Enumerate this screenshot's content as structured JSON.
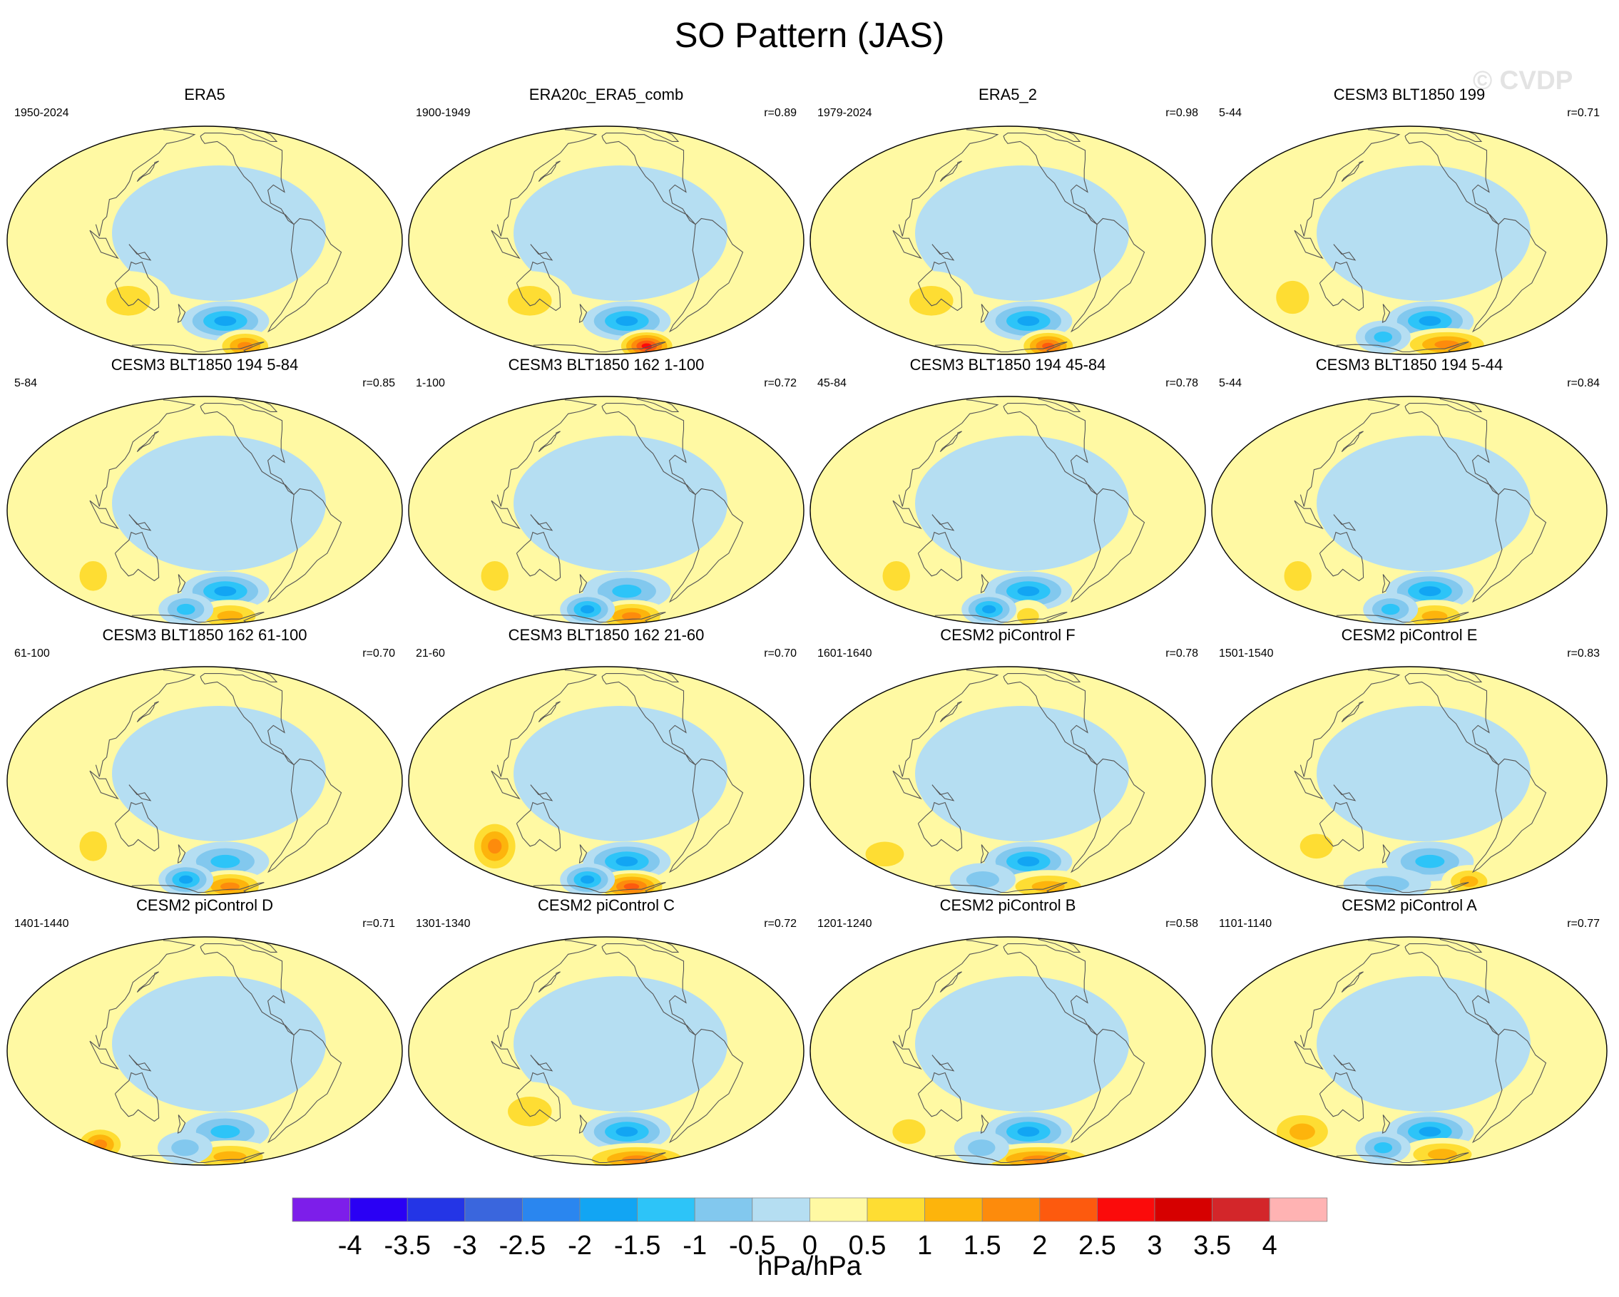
{
  "title": "SO Pattern (JAS)",
  "watermark": "© CVDP",
  "units": "hPa/hPa",
  "colorbar": {
    "colors": [
      "#7d1eea",
      "#2a00f4",
      "#2435e6",
      "#3a66dd",
      "#2a86ef",
      "#12a5f3",
      "#2dc4f8",
      "#82c8ee",
      "#b5def2",
      "#fff9a3",
      "#fedd33",
      "#fdb40c",
      "#fd8b0c",
      "#fd5a0e",
      "#fb0b0b",
      "#d60000",
      "#d3262a",
      "#ffb3b3"
    ],
    "labels": [
      "-4",
      "-3.5",
      "-3",
      "-2.5",
      "-2",
      "-1.5",
      "-1",
      "-0.5",
      "0",
      "0.5",
      "1",
      "1.5",
      "2",
      "2.5",
      "3",
      "3.5",
      "4"
    ]
  },
  "panels": [
    {
      "title": "ERA5",
      "years": "1950-2024",
      "corr": "",
      "features": [
        {
          "lon": -135,
          "lat": -45,
          "amp": -1.8,
          "rx": 40,
          "ry": 12
        },
        {
          "lon": -80,
          "lat": -68,
          "amp": 1.9,
          "rx": 28,
          "ry": 10
        },
        {
          "lon": 120,
          "lat": -32,
          "amp": 0.6,
          "rx": 40,
          "ry": 18
        }
      ]
    },
    {
      "title": "ERA20c_ERA5_comb",
      "years": "1900-1949",
      "corr": "r=0.89",
      "features": [
        {
          "lon": -135,
          "lat": -45,
          "amp": -1.8,
          "rx": 40,
          "ry": 12
        },
        {
          "lon": -80,
          "lat": -68,
          "amp": 2.8,
          "rx": 28,
          "ry": 10
        },
        {
          "lon": 120,
          "lat": -32,
          "amp": 0.6,
          "rx": 40,
          "ry": 18
        }
      ]
    },
    {
      "title": "ERA5_2",
      "years": "1979-2024",
      "corr": "r=0.98",
      "features": [
        {
          "lon": -135,
          "lat": -45,
          "amp": -1.9,
          "rx": 40,
          "ry": 12
        },
        {
          "lon": -80,
          "lat": -68,
          "amp": 2.2,
          "rx": 28,
          "ry": 10
        },
        {
          "lon": 120,
          "lat": -32,
          "amp": 0.6,
          "rx": 40,
          "ry": 18
        }
      ]
    },
    {
      "title": "CESM3 BLT1850 199",
      "years": "5-44",
      "corr": "r=0.71",
      "features": [
        {
          "lon": -135,
          "lat": -45,
          "amp": -1.6,
          "rx": 40,
          "ry": 12
        },
        {
          "lon": -90,
          "lat": -66,
          "amp": 1.6,
          "rx": 45,
          "ry": 10
        },
        {
          "lon": 80,
          "lat": -30,
          "amp": 0.7,
          "rx": 30,
          "ry": 20
        },
        {
          "lon": 160,
          "lat": -58,
          "amp": -1.2,
          "rx": 25,
          "ry": 10
        }
      ]
    },
    {
      "title": "CESM3 BLT1850 194 5-84",
      "years": "5-84",
      "corr": "r=0.85",
      "features": [
        {
          "lon": -135,
          "lat": -45,
          "amp": -1.6,
          "rx": 40,
          "ry": 12
        },
        {
          "lon": -110,
          "lat": -68,
          "amp": 1.4,
          "rx": 35,
          "ry": 10
        },
        {
          "lon": 80,
          "lat": -35,
          "amp": 0.8,
          "rx": 25,
          "ry": 18
        },
        {
          "lon": 170,
          "lat": -60,
          "amp": -1.3,
          "rx": 25,
          "ry": 10
        }
      ]
    },
    {
      "title": "CESM3 BLT1850 162 1-100",
      "years": "1-100",
      "corr": "r=0.72",
      "features": [
        {
          "lon": -135,
          "lat": -45,
          "amp": -1.5,
          "rx": 40,
          "ry": 12
        },
        {
          "lon": -110,
          "lat": -68,
          "amp": 1.7,
          "rx": 35,
          "ry": 10
        },
        {
          "lon": 80,
          "lat": -35,
          "amp": 0.8,
          "rx": 25,
          "ry": 18
        },
        {
          "lon": 170,
          "lat": -60,
          "amp": -1.8,
          "rx": 25,
          "ry": 10
        }
      ]
    },
    {
      "title": "CESM3 BLT1850 194 45-84",
      "years": "45-84",
      "corr": "r=0.78",
      "features": [
        {
          "lon": -135,
          "lat": -45,
          "amp": -1.6,
          "rx": 40,
          "ry": 12
        },
        {
          "lon": -120,
          "lat": -68,
          "amp": 1.0,
          "rx": 20,
          "ry": 10
        },
        {
          "lon": 80,
          "lat": -35,
          "amp": 0.9,
          "rx": 25,
          "ry": 18
        },
        {
          "lon": 170,
          "lat": -60,
          "amp": -1.6,
          "rx": 25,
          "ry": 10
        }
      ]
    },
    {
      "title": "CESM3 BLT1850 194 5-44",
      "years": "5-44",
      "corr": "r=0.84",
      "features": [
        {
          "lon": -135,
          "lat": -45,
          "amp": -1.6,
          "rx": 40,
          "ry": 12
        },
        {
          "lon": -110,
          "lat": -68,
          "amp": 1.4,
          "rx": 35,
          "ry": 10
        },
        {
          "lon": 80,
          "lat": -35,
          "amp": 0.8,
          "rx": 25,
          "ry": 18
        },
        {
          "lon": 170,
          "lat": -60,
          "amp": -1.1,
          "rx": 25,
          "ry": 10
        }
      ]
    },
    {
      "title": "CESM3 BLT1850 162 61-100",
      "years": "61-100",
      "corr": "r=0.70",
      "features": [
        {
          "lon": -135,
          "lat": -45,
          "amp": -1.5,
          "rx": 40,
          "ry": 12
        },
        {
          "lon": -110,
          "lat": -68,
          "amp": 1.6,
          "rx": 35,
          "ry": 10
        },
        {
          "lon": 80,
          "lat": -35,
          "amp": 0.6,
          "rx": 25,
          "ry": 18
        },
        {
          "lon": 170,
          "lat": -60,
          "amp": -1.6,
          "rx": 25,
          "ry": 10
        }
      ]
    },
    {
      "title": "CESM3 BLT1850 162 21-60",
      "years": "21-60",
      "corr": "r=0.70",
      "features": [
        {
          "lon": -135,
          "lat": -45,
          "amp": -1.6,
          "rx": 40,
          "ry": 12
        },
        {
          "lon": -110,
          "lat": -68,
          "amp": 2.4,
          "rx": 35,
          "ry": 10
        },
        {
          "lon": 80,
          "lat": -35,
          "amp": 1.6,
          "rx": 25,
          "ry": 18
        },
        {
          "lon": 170,
          "lat": -60,
          "amp": -2.0,
          "rx": 25,
          "ry": 10
        }
      ]
    },
    {
      "title": "CESM2 piControl F",
      "years": "1601-1640",
      "corr": "r=0.78",
      "features": [
        {
          "lon": -135,
          "lat": -45,
          "amp": -1.6,
          "rx": 40,
          "ry": 12
        },
        {
          "lon": -80,
          "lat": -68,
          "amp": 1.2,
          "rx": 45,
          "ry": 10
        },
        {
          "lon": 60,
          "lat": -40,
          "amp": 0.9,
          "rx": 35,
          "ry": 15
        },
        {
          "lon": 160,
          "lat": -60,
          "amp": -0.8,
          "rx": 30,
          "ry": 10
        }
      ]
    },
    {
      "title": "CESM2 piControl E",
      "years": "1501-1540",
      "corr": "r=0.83",
      "features": [
        {
          "lon": -135,
          "lat": -45,
          "amp": -1.4,
          "rx": 40,
          "ry": 12
        },
        {
          "lon": -60,
          "lat": -62,
          "amp": 1.3,
          "rx": 25,
          "ry": 10
        },
        {
          "lon": 100,
          "lat": -35,
          "amp": 0.6,
          "rx": 30,
          "ry": 15
        },
        {
          "lon": 160,
          "lat": -65,
          "amp": -0.9,
          "rx": 40,
          "ry": 10
        }
      ]
    },
    {
      "title": "CESM2 piControl D",
      "years": "1401-1440",
      "corr": "r=0.71",
      "features": [
        {
          "lon": -135,
          "lat": -45,
          "amp": -1.5,
          "rx": 40,
          "ry": 12
        },
        {
          "lon": -110,
          "lat": -68,
          "amp": 1.1,
          "rx": 45,
          "ry": 10
        },
        {
          "lon": 50,
          "lat": -55,
          "amp": 1.6,
          "rx": 25,
          "ry": 12
        },
        {
          "lon": 170,
          "lat": -58,
          "amp": -0.9,
          "rx": 25,
          "ry": 10
        }
      ]
    },
    {
      "title": "CESM2 piControl C",
      "years": "1301-1340",
      "corr": "r=0.72",
      "features": [
        {
          "lon": -135,
          "lat": -45,
          "amp": -1.6,
          "rx": 40,
          "ry": 12
        },
        {
          "lon": -90,
          "lat": -72,
          "amp": 2.0,
          "rx": 55,
          "ry": 10
        },
        {
          "lon": 120,
          "lat": -32,
          "amp": 0.6,
          "rx": 40,
          "ry": 18
        }
      ]
    },
    {
      "title": "CESM2 piControl B",
      "years": "1201-1240",
      "corr": "r=0.58",
      "features": [
        {
          "lon": -135,
          "lat": -45,
          "amp": -1.6,
          "rx": 40,
          "ry": 12
        },
        {
          "lon": -90,
          "lat": -72,
          "amp": 1.8,
          "rx": 60,
          "ry": 10
        },
        {
          "lon": 160,
          "lat": -58,
          "amp": -0.8,
          "rx": 25,
          "ry": 10
        },
        {
          "lon": 80,
          "lat": -45,
          "amp": 0.7,
          "rx": 30,
          "ry": 15
        }
      ]
    },
    {
      "title": "CESM2 piControl A",
      "years": "1101-1140",
      "corr": "r=0.77",
      "features": [
        {
          "lon": -135,
          "lat": -45,
          "amp": -1.6,
          "rx": 40,
          "ry": 12
        },
        {
          "lon": -100,
          "lat": -65,
          "amp": 1.2,
          "rx": 40,
          "ry": 10
        },
        {
          "lon": 70,
          "lat": -45,
          "amp": 1.1,
          "rx": 35,
          "ry": 15
        },
        {
          "lon": 160,
          "lat": -58,
          "amp": -1.3,
          "rx": 25,
          "ry": 10
        }
      ]
    }
  ]
}
